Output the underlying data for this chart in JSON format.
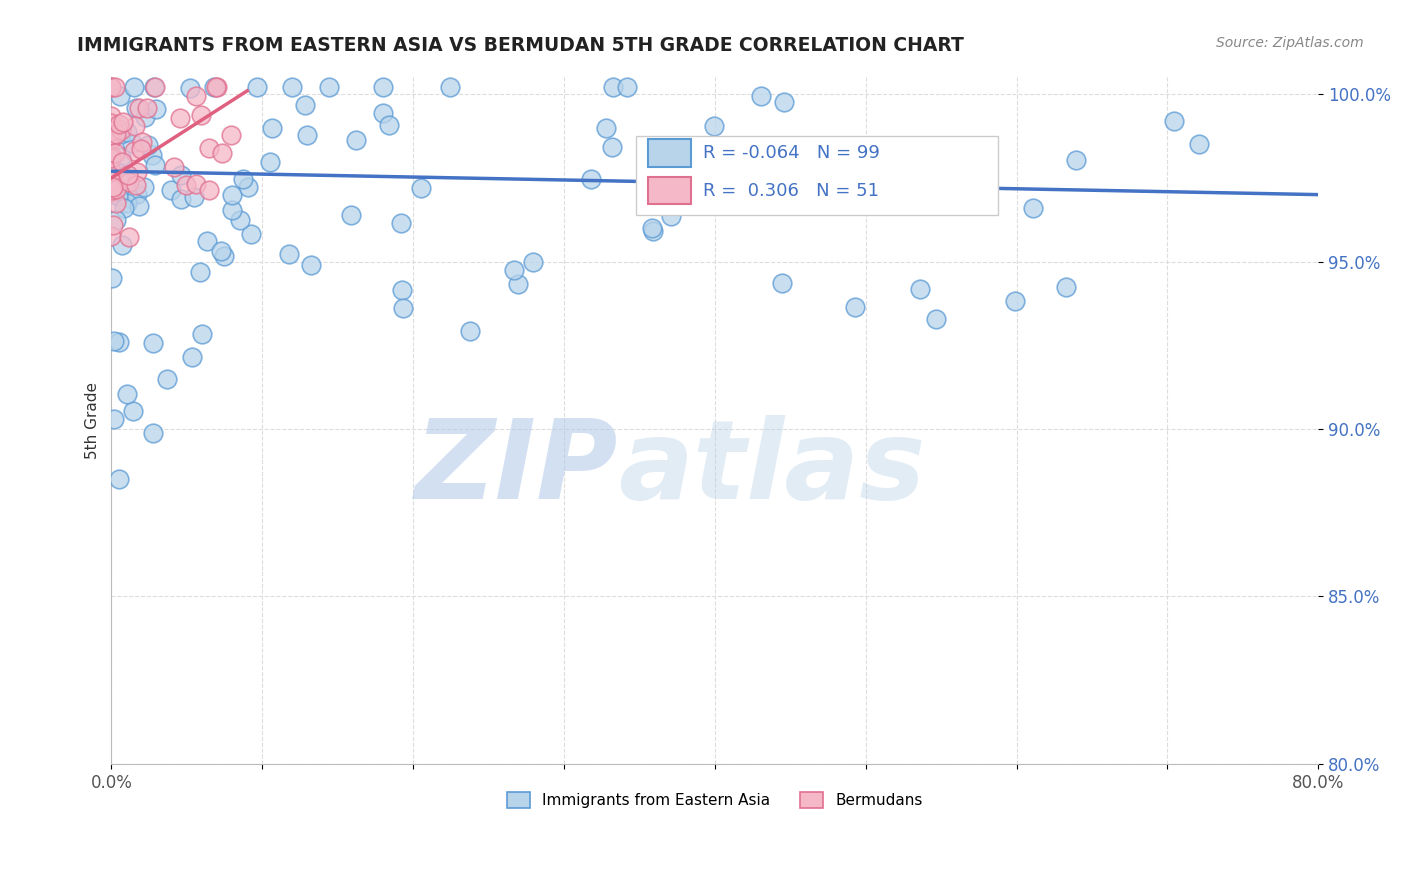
{
  "title": "IMMIGRANTS FROM EASTERN ASIA VS BERMUDAN 5TH GRADE CORRELATION CHART",
  "source_text": "Source: ZipAtlas.com",
  "ylabel": "5th Grade",
  "watermark_zip": "ZIP",
  "watermark_atlas": "atlas",
  "x_min": 0.0,
  "x_max": 0.8,
  "y_min": 0.8,
  "y_max": 1.005,
  "blue_color": "#b8d4ea",
  "blue_edge_color": "#5b9bd5",
  "pink_color": "#f4b8c8",
  "pink_edge_color": "#e07090",
  "blue_line_color": "#4472c4",
  "pink_line_color": "#e06080",
  "legend_R1": "-0.064",
  "legend_N1": "99",
  "legend_R2": "0.306",
  "legend_N2": "51",
  "legend_label1": "Immigrants from Eastern Asia",
  "legend_label2": "Bermudans",
  "grid_color": "#dddddd",
  "title_color": "#222222",
  "source_color": "#888888",
  "ytick_color": "#4472c4",
  "ylabel_color": "#333333"
}
